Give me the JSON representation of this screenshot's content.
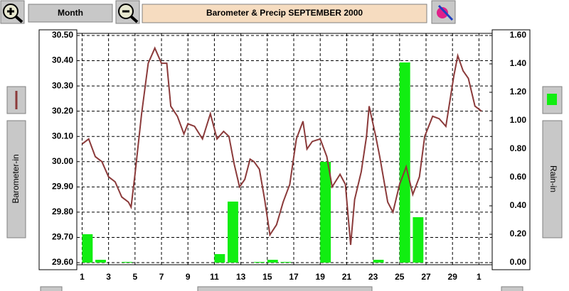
{
  "ui": {
    "month_button": "Month"
  },
  "chart_data": {
    "type": "combo",
    "title": "Barometer & Precip  SEPTEMBER 2000",
    "ylabel": "Barometer-in",
    "y2label": "Rain-in",
    "xlim": [
      0.6,
      32
    ],
    "xticks": [
      1,
      3,
      5,
      7,
      9,
      11,
      13,
      15,
      17,
      19,
      21,
      23,
      25,
      27,
      29,
      {
        "value": 31,
        "label": "1"
      }
    ],
    "ylim": [
      29.6,
      30.5
    ],
    "yticks": [
      {
        "value": 29.6,
        "label": "29.60"
      },
      {
        "value": 29.7,
        "label": "29.70"
      },
      {
        "value": 29.8,
        "label": "29.80"
      },
      {
        "value": 29.9,
        "label": "29.90"
      },
      {
        "value": 30.0,
        "label": "30.00"
      },
      {
        "value": 30.1,
        "label": "30.10"
      },
      {
        "value": 30.2,
        "label": "30.20"
      },
      {
        "value": 30.3,
        "label": "30.30"
      },
      {
        "value": 30.4,
        "label": "30.40"
      },
      {
        "value": 30.5,
        "label": "30.50"
      }
    ],
    "y2lim": [
      0,
      1.6
    ],
    "y2ticks": [
      {
        "value": 0,
        "label": "0.00"
      },
      {
        "value": 0.2,
        "label": "0.20"
      },
      {
        "value": 0.4,
        "label": "0.40"
      },
      {
        "value": 0.6,
        "label": "0.60"
      },
      {
        "value": 0.8,
        "label": "0.80"
      },
      {
        "value": 1.0,
        "label": "1.00"
      },
      {
        "value": 1.2,
        "label": "1.20"
      },
      {
        "value": 1.4,
        "label": "1.40"
      },
      {
        "value": 1.6,
        "label": "1.60"
      }
    ],
    "grid": true,
    "series": [
      {
        "type": "bar",
        "axis": "y2",
        "color": "#11ee11",
        "x": [
          1,
          2,
          4,
          11,
          12,
          14,
          15,
          16,
          19,
          23,
          25,
          26
        ],
        "values": [
          0.2,
          0.02,
          0.005,
          0.06,
          0.43,
          0.005,
          0.02,
          0.005,
          0.71,
          0.02,
          1.41,
          0.32
        ]
      },
      {
        "type": "line",
        "color": "#8b3a3a",
        "x": [
          1.0,
          1.5,
          2.0,
          2.5,
          3.0,
          3.5,
          4.0,
          4.5,
          4.7,
          5.0,
          5.5,
          6.0,
          6.5,
          7.0,
          7.4,
          7.7,
          8.2,
          8.7,
          9.0,
          9.5,
          10.1,
          10.7,
          11.2,
          11.7,
          12.1,
          12.5,
          12.9,
          13.3,
          13.7,
          14.0,
          14.4,
          14.8,
          15.2,
          15.7,
          16.2,
          16.7,
          17.2,
          17.7,
          18.0,
          18.4,
          19.0,
          19.5,
          19.9,
          20.5,
          20.9,
          21.3,
          21.6,
          22.1,
          22.5,
          22.7,
          23.2,
          23.5,
          24.1,
          24.5,
          25.0,
          25.5,
          26.0,
          26.5,
          26.9,
          27.5,
          28.0,
          28.5,
          29.1,
          29.4,
          29.8,
          30.2,
          30.7,
          31.2
        ],
        "values": [
          30.07,
          30.09,
          30.02,
          30.0,
          29.94,
          29.92,
          29.86,
          29.84,
          29.82,
          29.95,
          30.19,
          30.39,
          30.45,
          30.39,
          30.39,
          30.22,
          30.18,
          30.11,
          30.15,
          30.14,
          30.09,
          30.19,
          30.09,
          30.12,
          30.1,
          29.99,
          29.9,
          29.93,
          30.01,
          30.0,
          29.97,
          29.85,
          29.71,
          29.75,
          29.84,
          29.91,
          30.09,
          30.16,
          30.05,
          30.08,
          30.09,
          30.02,
          29.9,
          29.95,
          29.91,
          29.67,
          29.85,
          29.96,
          30.1,
          30.22,
          30.1,
          30.02,
          29.84,
          29.8,
          29.91,
          29.98,
          29.87,
          29.94,
          30.1,
          30.18,
          30.17,
          30.14,
          30.34,
          30.42,
          30.36,
          30.33,
          30.22,
          30.2
        ]
      }
    ]
  }
}
